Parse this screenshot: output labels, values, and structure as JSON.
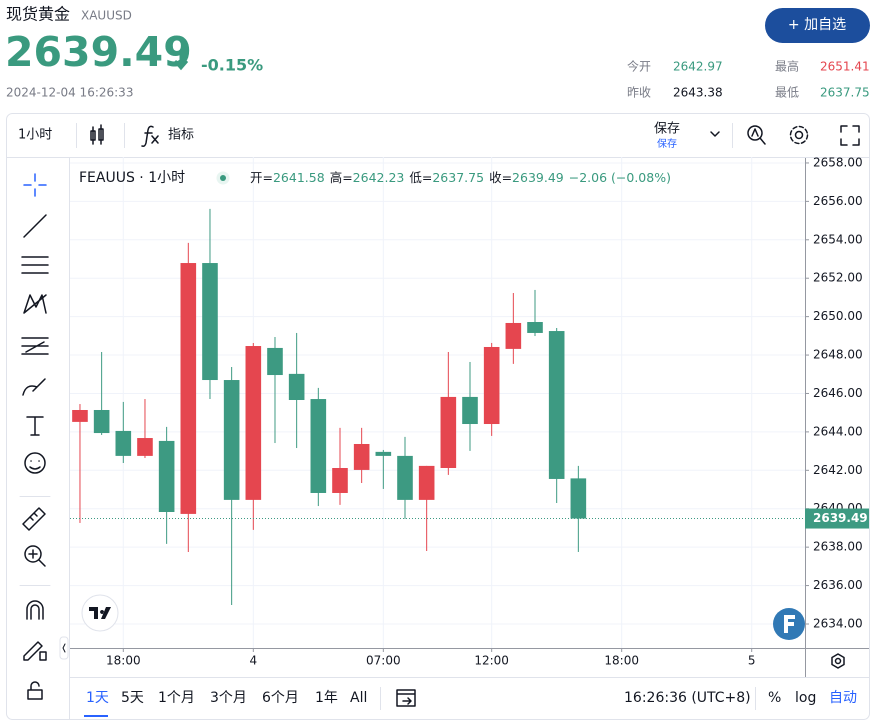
{
  "header": {
    "title": "现货黄金",
    "symbol": "XAUUSD",
    "price": "2639.49",
    "change": "-0.15%",
    "datetime": "2024-12-04 16:26:33",
    "button": "+ 加自选",
    "stats": [
      {
        "label": "今开",
        "value": "2642.97"
      },
      {
        "label": "最高",
        "value": "2651.41"
      },
      {
        "label": "昨收",
        "value": "2643.38"
      },
      {
        "label": "最低",
        "value": "2637.75"
      }
    ]
  },
  "toolbar": {
    "interval": "1小时",
    "indicators": "指标",
    "save": "保存",
    "save_sub": "保存"
  },
  "bottom_bar": {
    "ranges": [
      "1天",
      "5天",
      "1个月",
      "3个月",
      "6个月",
      "1年",
      "All"
    ],
    "time": "16:26:36 (UTC+8)",
    "percent": "%",
    "log": "log",
    "auto": "自动"
  },
  "chart_data": {
    "type": "candlestick",
    "legend_title": "FEAUUS · 1小时",
    "legend_labels": [
      "开=",
      "高=",
      "低=",
      "收="
    ],
    "legend_change": "−2.06 (−0.08%)",
    "x": [
      0,
      1,
      2,
      3,
      4,
      5,
      6,
      7,
      8,
      9,
      10,
      11,
      12,
      13,
      14,
      15,
      16,
      17,
      18,
      19,
      20,
      21,
      22,
      23
    ],
    "open": [
      2644.52,
      2645.14,
      2644.05,
      2642.75,
      2643.53,
      2639.73,
      2652.79,
      2646.7,
      2640.46,
      2648.37,
      2647.02,
      2645.71,
      2640.82,
      2642.02,
      2642.96,
      2642.75,
      2640.46,
      2642.12,
      2645.82,
      2644.41,
      2648.32,
      2649.72,
      2649.25,
      2641.58
    ],
    "high": [
      2645.45,
      2648.16,
      2645.56,
      2645.71,
      2644.26,
      2653.84,
      2655.61,
      2647.38,
      2648.63,
      2648.94,
      2649.15,
      2646.29,
      2644.21,
      2644.21,
      2643.06,
      2643.74,
      2642.23,
      2648.16,
      2647.64,
      2648.63,
      2651.23,
      2651.39,
      2649.41,
      2642.23
    ],
    "low": [
      2639.26,
      2643.84,
      2642.38,
      2642.64,
      2638.17,
      2637.75,
      2645.71,
      2634.99,
      2638.9,
      2643.42,
      2643.16,
      2640.14,
      2640.2,
      2641.34,
      2641.03,
      2639.47,
      2637.8,
      2641.76,
      2643.01,
      2643.79,
      2647.54,
      2648.99,
      2640.3,
      2637.75
    ],
    "close": [
      2645.14,
      2643.94,
      2642.75,
      2643.68,
      2639.83,
      2652.79,
      2646.7,
      2640.46,
      2648.47,
      2646.96,
      2645.66,
      2640.82,
      2642.12,
      2643.37,
      2642.75,
      2640.46,
      2642.23,
      2645.82,
      2644.41,
      2648.42,
      2649.67,
      2649.15,
      2641.55,
      2639.49
    ],
    "up_color": "#e5464f",
    "down_color": "#3d9a82",
    "xlim": [
      -0.46,
      33.46
    ],
    "xticks": [
      {
        "value": 2,
        "label": "18:00"
      },
      {
        "value": 8,
        "label": "4"
      },
      {
        "value": 14,
        "label": "07:00"
      },
      {
        "value": 19,
        "label": "12:00"
      },
      {
        "value": 25,
        "label": "18:00"
      },
      {
        "value": 31,
        "label": "5"
      }
    ],
    "ylim": [
      2632.75,
      2658.31
    ],
    "yticks": [
      {
        "value": 2634,
        "label": "2634.00"
      },
      {
        "value": 2636,
        "label": "2636.00"
      },
      {
        "value": 2638,
        "label": "2638.00"
      },
      {
        "value": 2640,
        "label": "2640.00"
      },
      {
        "value": 2642,
        "label": "2642.00"
      },
      {
        "value": 2644,
        "label": "2644.00"
      },
      {
        "value": 2646,
        "label": "2646.00"
      },
      {
        "value": 2648,
        "label": "2648.00"
      },
      {
        "value": 2650,
        "label": "2650.00"
      },
      {
        "value": 2652,
        "label": "2652.00"
      },
      {
        "value": 2654,
        "label": "2654.00"
      },
      {
        "value": 2656,
        "label": "2656.00"
      },
      {
        "value": 2658,
        "label": "2658.00"
      }
    ],
    "grid": true
  }
}
